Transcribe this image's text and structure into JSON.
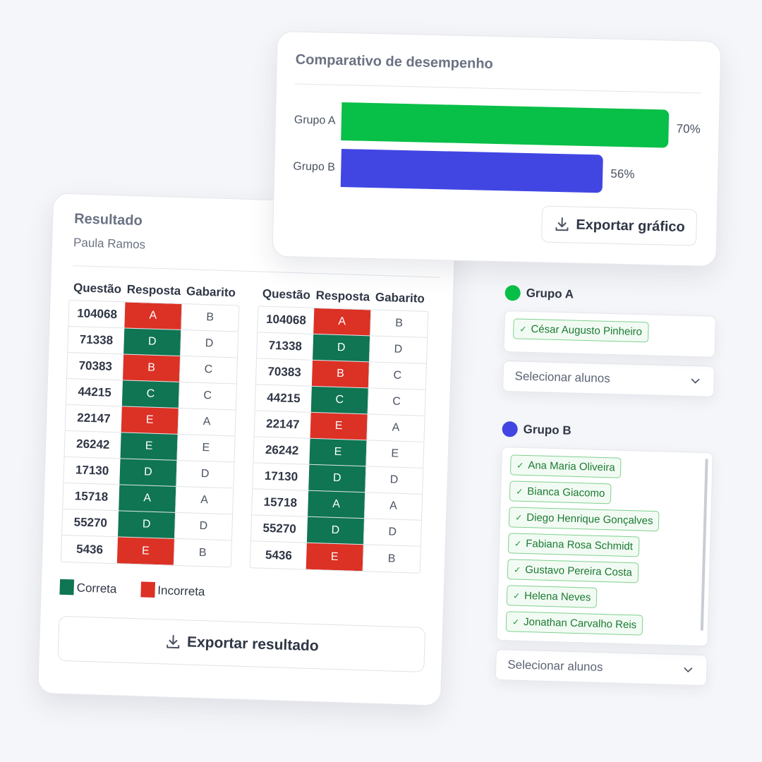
{
  "result": {
    "title": "Resultado",
    "student": "Paula Ramos",
    "columns": [
      "Questão",
      "Resposta",
      "Gabarito"
    ],
    "tables": [
      {
        "rows": [
          {
            "q": "104068",
            "r": "A",
            "g": "B",
            "correct": false
          },
          {
            "q": "71338",
            "r": "D",
            "g": "D",
            "correct": true
          },
          {
            "q": "70383",
            "r": "B",
            "g": "C",
            "correct": false
          },
          {
            "q": "44215",
            "r": "C",
            "g": "C",
            "correct": true
          },
          {
            "q": "22147",
            "r": "E",
            "g": "A",
            "correct": false
          },
          {
            "q": "26242",
            "r": "E",
            "g": "E",
            "correct": true
          },
          {
            "q": "17130",
            "r": "D",
            "g": "D",
            "correct": true
          },
          {
            "q": "15718",
            "r": "A",
            "g": "A",
            "correct": true
          },
          {
            "q": "55270",
            "r": "D",
            "g": "D",
            "correct": true
          },
          {
            "q": "5436",
            "r": "E",
            "g": "B",
            "correct": false
          }
        ]
      },
      {
        "rows": [
          {
            "q": "104068",
            "r": "A",
            "g": "B",
            "correct": false
          },
          {
            "q": "71338",
            "r": "D",
            "g": "D",
            "correct": true
          },
          {
            "q": "70383",
            "r": "B",
            "g": "C",
            "correct": false
          },
          {
            "q": "44215",
            "r": "C",
            "g": "C",
            "correct": true
          },
          {
            "q": "22147",
            "r": "E",
            "g": "A",
            "correct": false
          },
          {
            "q": "26242",
            "r": "E",
            "g": "E",
            "correct": true
          },
          {
            "q": "17130",
            "r": "D",
            "g": "D",
            "correct": true
          },
          {
            "q": "15718",
            "r": "A",
            "g": "A",
            "correct": true
          },
          {
            "q": "55270",
            "r": "D",
            "g": "D",
            "correct": true
          },
          {
            "q": "5436",
            "r": "E",
            "g": "B",
            "correct": false
          }
        ]
      }
    ],
    "legend": {
      "correct": "Correta",
      "incorrect": "Incorreta"
    },
    "export_label": "Exportar resultado"
  },
  "colors": {
    "correct": "#0f7552",
    "incorrect": "#dc3125",
    "group_a": "#08bf47",
    "group_b": "#4146e3"
  },
  "chart": {
    "title": "Comparativo de desempenho",
    "export_label": "Exportar gráfico"
  },
  "chart_data": {
    "type": "bar",
    "orientation": "horizontal",
    "title": "Comparativo de desempenho",
    "categories": [
      "Grupo A",
      "Grupo B"
    ],
    "values": [
      70,
      56
    ],
    "value_labels": [
      "70%",
      "56%"
    ],
    "xlim": [
      0,
      70
    ],
    "grid": false
  },
  "groups": [
    {
      "name": "Grupo A",
      "students": [
        "César Augusto Pinheiro"
      ],
      "select_placeholder": "Selecionar alunos"
    },
    {
      "name": "Grupo B",
      "students": [
        "Ana Maria Oliveira",
        "Bianca Giacomo",
        "Diego Henrique Gonçalves",
        "Fabiana Rosa Schmidt",
        "Gustavo Pereira Costa",
        "Helena Neves",
        "Jonathan Carvalho Reis"
      ],
      "select_placeholder": "Selecionar alunos"
    }
  ],
  "icons": {
    "download": "download-icon",
    "check": "check-icon",
    "chevron": "chevron-down-icon"
  }
}
